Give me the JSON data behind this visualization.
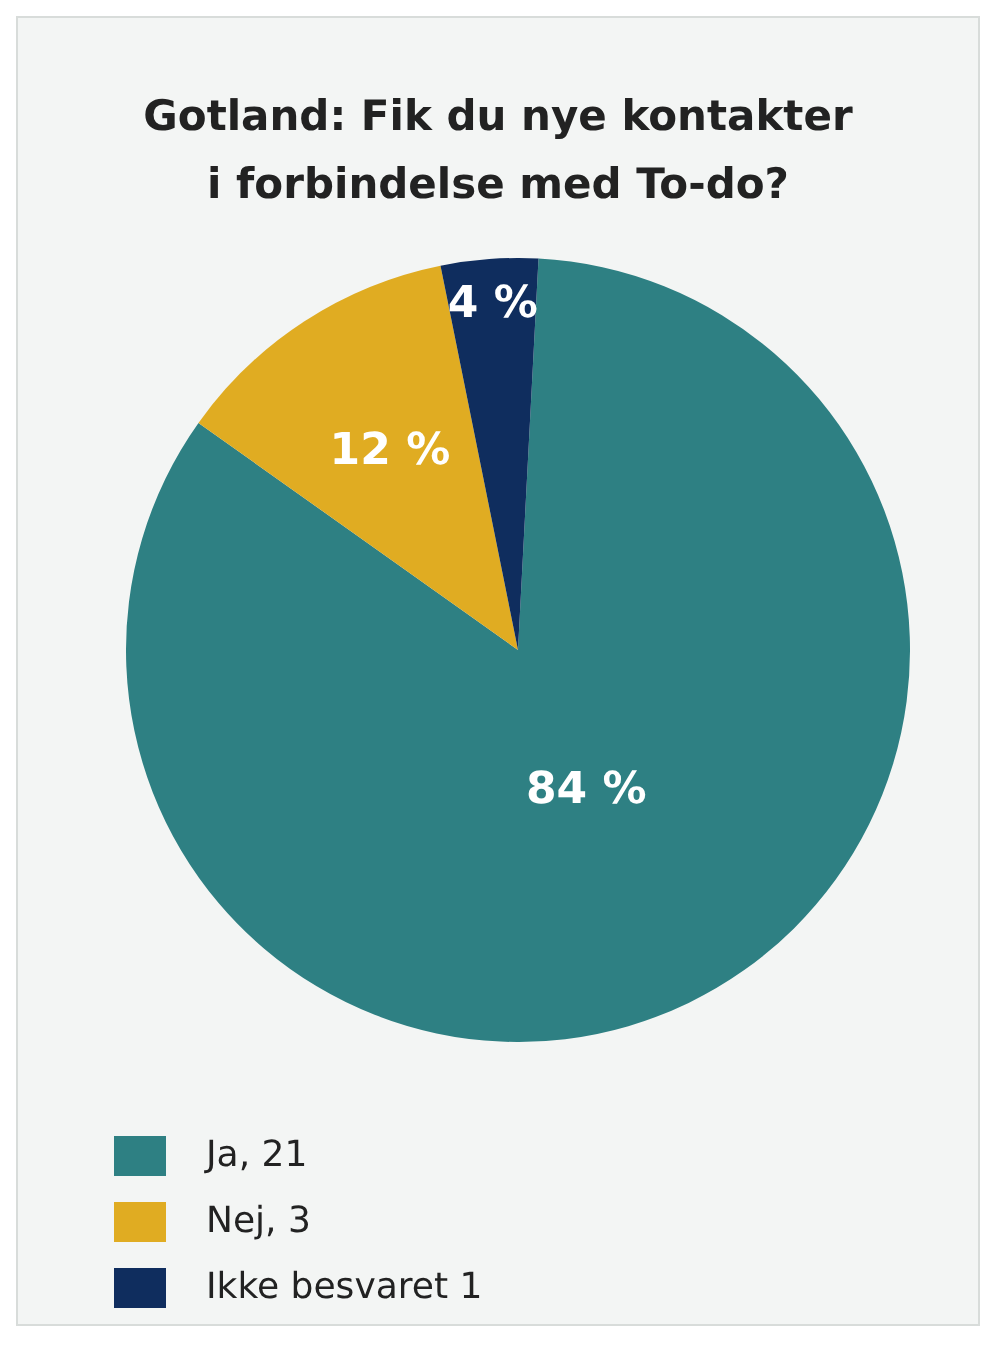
{
  "chart_data": {
    "type": "pie",
    "title": "Gotland: Fik du nye kontakter\ni forbindelse med To-do?",
    "categories": [
      "Ja, 21",
      "Nej, 3",
      "Ikke besvaret 1"
    ],
    "values": [
      84,
      12,
      4
    ],
    "colors": [
      "#2e8083",
      "#e0ac22",
      "#0f2d5e"
    ],
    "value_labels": [
      "84 %",
      "12 %",
      "4 %"
    ],
    "legend": "bottom left"
  }
}
